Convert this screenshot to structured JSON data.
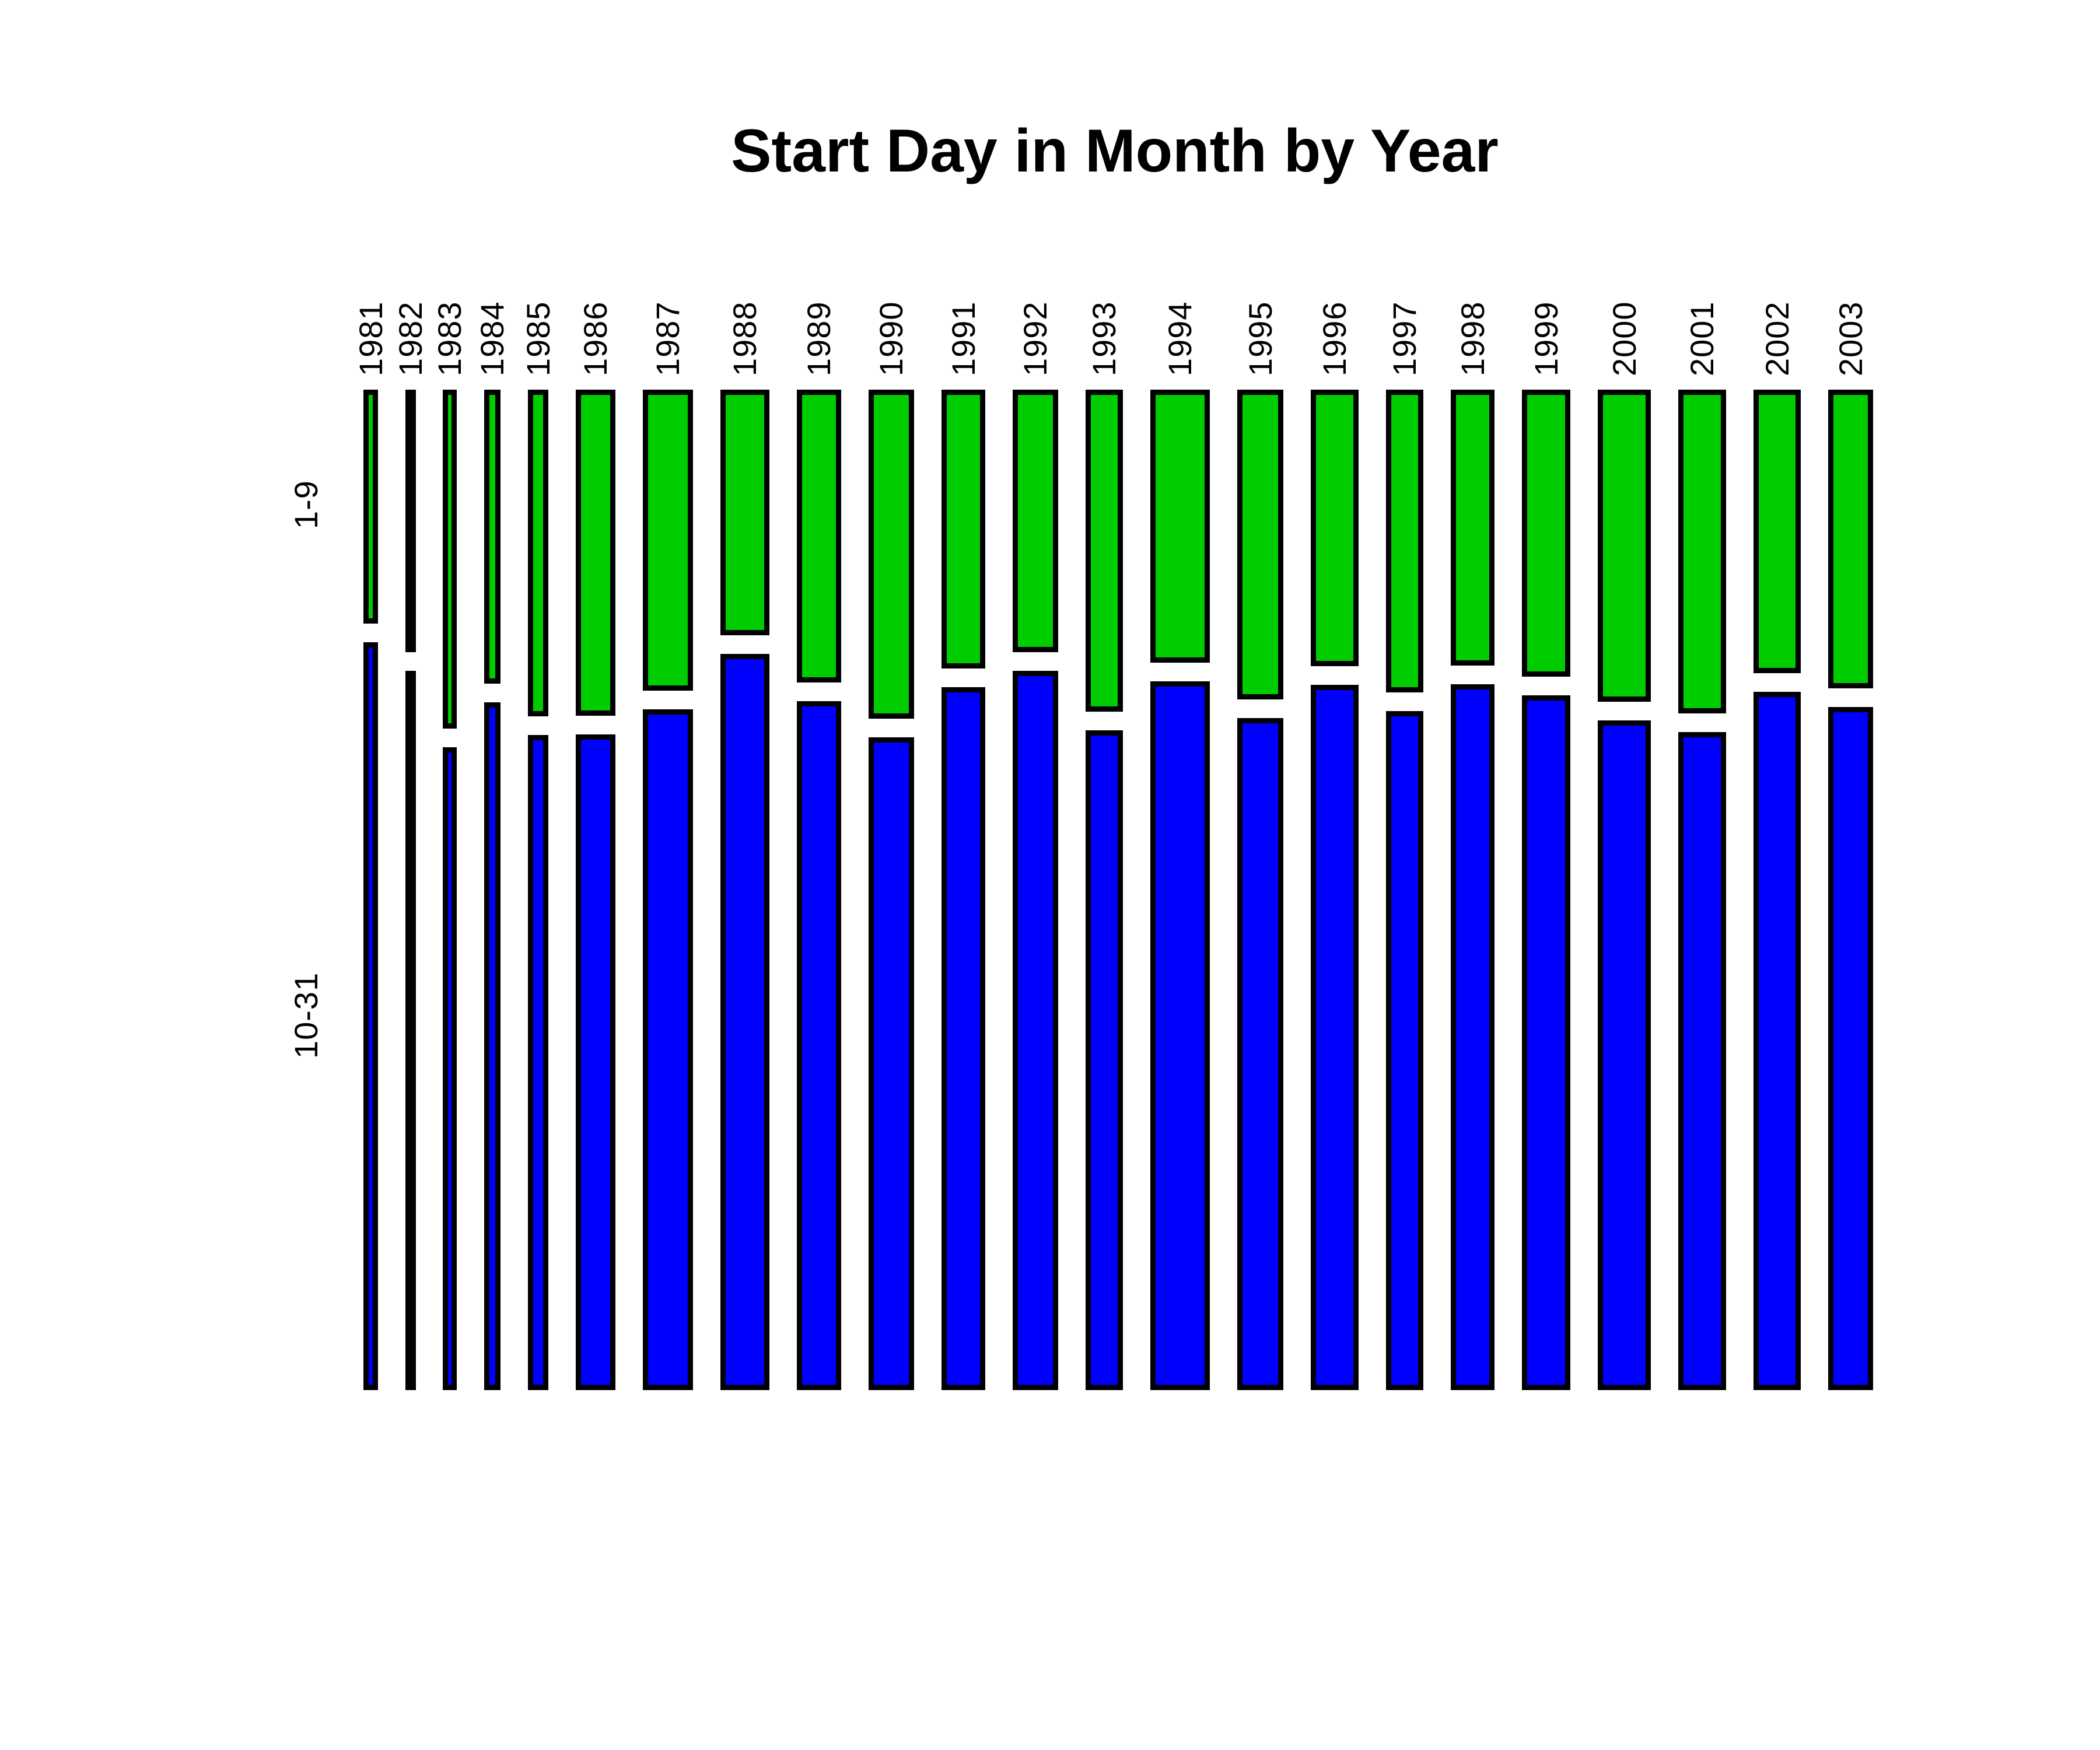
{
  "chart_data": {
    "type": "bar",
    "variant": "spineplot-mosaic",
    "title": "Start Day in Month by Year",
    "orientation": "columns-proportional-width",
    "x_axis_position": "top",
    "grid": false,
    "legend": "none",
    "background": "#ffffff",
    "border_color": "#000000",
    "y_axis_labels": [
      "1-9",
      "10-31"
    ],
    "categories": [
      1981,
      1982,
      1983,
      1984,
      1985,
      1986,
      1987,
      1988,
      1989,
      1990,
      1991,
      1992,
      1993,
      1994,
      1995,
      1996,
      1997,
      1998,
      1999,
      2000,
      2001,
      2002,
      2003
    ],
    "column_weights": [
      25,
      17,
      24,
      28,
      35,
      68,
      86,
      84,
      76,
      78,
      75,
      78,
      64,
      102,
      79,
      82,
      64,
      75,
      83,
      91,
      82,
      81,
      77
    ],
    "series": [
      {
        "name": "1-9",
        "color": "#00CD00",
        "fractions": [
          0.243,
          0.272,
          0.348,
          0.303,
          0.336,
          0.335,
          0.31,
          0.255,
          0.302,
          0.338,
          0.288,
          0.272,
          0.331,
          0.282,
          0.319,
          0.286,
          0.312,
          0.285,
          0.296,
          0.321,
          0.333,
          0.293,
          0.308
        ]
      },
      {
        "name": "10-31",
        "color": "#0000FF",
        "fractions": [
          0.757,
          0.728,
          0.652,
          0.697,
          0.664,
          0.665,
          0.69,
          0.745,
          0.698,
          0.662,
          0.712,
          0.728,
          0.669,
          0.718,
          0.681,
          0.714,
          0.688,
          0.715,
          0.704,
          0.679,
          0.667,
          0.707,
          0.692
        ]
      }
    ]
  }
}
